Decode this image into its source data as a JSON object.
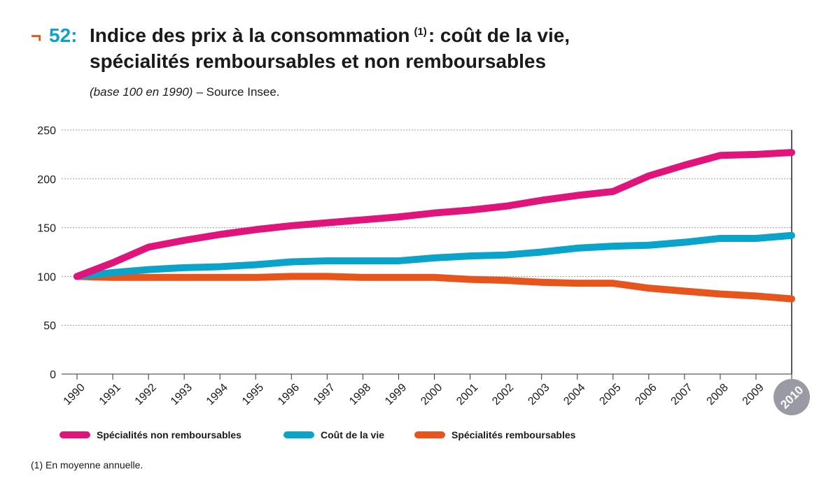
{
  "chart_data": {
    "type": "line",
    "title_marker": "¬",
    "title_number": "52:",
    "title": "Indice des prix à la consommation",
    "title_note": "(1)",
    "title_end": ": coût de la vie,",
    "title_line2": "spécialités remboursables et non remboursables",
    "subtitle": "(base 100 en 1990)",
    "source": "– Source Insee.",
    "footnote": "(1) En moyenne annuelle.",
    "categories": [
      "1990",
      "1991",
      "1992",
      "1993",
      "1994",
      "1995",
      "1996",
      "1997",
      "1998",
      "1999",
      "2000",
      "2001",
      "2002",
      "2003",
      "2004",
      "2005",
      "2006",
      "2007",
      "2008",
      "2009",
      "2010"
    ],
    "series": [
      {
        "name": "Spécialités non remboursables",
        "color": "#e0147a",
        "values": [
          100,
          114,
          130,
          137,
          143,
          148,
          152,
          155,
          158,
          161,
          165,
          168,
          172,
          178,
          183,
          187,
          203,
          214,
          224,
          225,
          227
        ]
      },
      {
        "name": "Coût de la vie",
        "color": "#0aa3c9",
        "values": [
          100,
          104,
          107,
          109,
          110,
          112,
          115,
          116,
          116,
          116,
          119,
          121,
          122,
          125,
          129,
          131,
          132,
          135,
          139,
          139,
          142
        ]
      },
      {
        "name": "Spécialités remboursables",
        "color": "#e8551c",
        "values": [
          100,
          99,
          99,
          99,
          99,
          99,
          100,
          100,
          99,
          99,
          99,
          97,
          96,
          94,
          93,
          93,
          88,
          85,
          82,
          80,
          77
        ]
      }
    ],
    "ylim": [
      0,
      250
    ],
    "yticks": [
      0,
      50,
      100,
      150,
      200,
      250
    ],
    "grid": true
  }
}
